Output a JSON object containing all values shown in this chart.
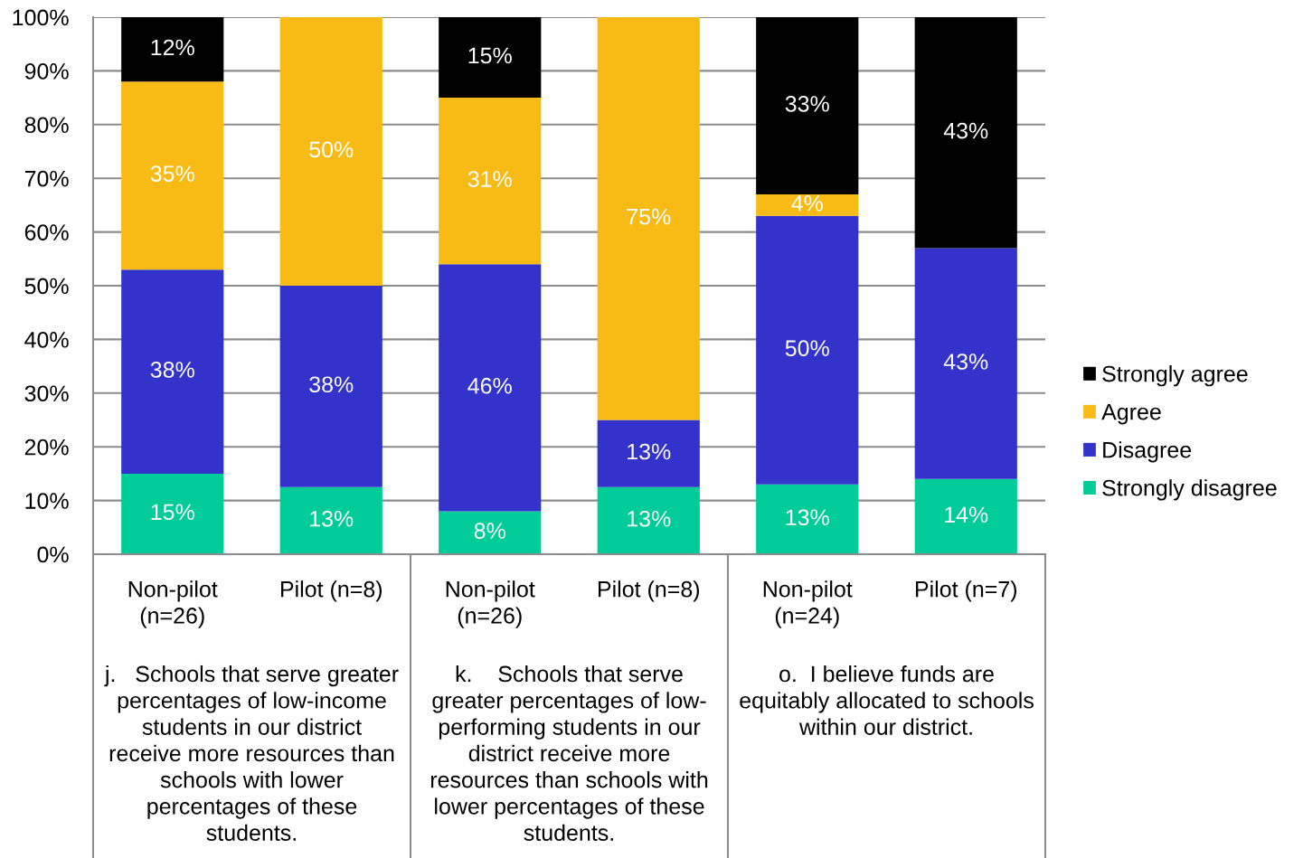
{
  "chart_data": {
    "type": "bar",
    "stacked": true,
    "categories": [
      "Non-pilot\n(n=26)",
      "Pilot (n=8)",
      "Non-pilot\n(n=26)",
      "Pilot (n=8)",
      "Non-pilot\n(n=24)",
      "Pilot (n=7)"
    ],
    "series": [
      {
        "name": "Strongly disagree",
        "color": "#00cc99",
        "values": [
          15,
          12.5,
          8,
          12.5,
          13,
          14
        ],
        "value_labels": [
          "15%",
          "13%",
          "8%",
          "13%",
          "13%",
          "14%"
        ]
      },
      {
        "name": "Disagree",
        "color": "#3333cc",
        "values": [
          38,
          37.5,
          46,
          12.5,
          50,
          43
        ],
        "value_labels": [
          "38%",
          "38%",
          "46%",
          "13%",
          "50%",
          "43%"
        ]
      },
      {
        "name": "Agree",
        "color": "#f8bb16",
        "values": [
          35,
          50,
          31,
          75,
          4,
          null
        ],
        "value_labels": [
          "35%",
          "50%",
          "31%",
          "75%",
          "4%",
          null
        ]
      },
      {
        "name": "Strongly agree",
        "color": "#000000",
        "values": [
          12,
          null,
          15,
          null,
          33,
          43
        ],
        "value_labels": [
          "12%",
          null,
          "15%",
          null,
          "33%",
          "43%"
        ]
      }
    ],
    "ylim": [
      0,
      100
    ],
    "yticks": [
      {
        "value": 0,
        "label": "0%"
      },
      {
        "value": 10,
        "label": "10%"
      },
      {
        "value": 20,
        "label": "20%"
      },
      {
        "value": 30,
        "label": "30%"
      },
      {
        "value": 40,
        "label": "40%"
      },
      {
        "value": 50,
        "label": "50%"
      },
      {
        "value": 60,
        "label": "60%"
      },
      {
        "value": 70,
        "label": "70%"
      },
      {
        "value": 80,
        "label": "80%"
      },
      {
        "value": 90,
        "label": "90%"
      },
      {
        "value": 100,
        "label": "100%"
      }
    ],
    "grid": "y",
    "legend": "right",
    "annotations": [
      "j.   Schools that serve greater\npercentages of low-income\nstudents in our district\nreceive more resources than\nschools with lower\npercentages of these\nstudents.",
      "k.    Schools that serve\ngreater percentages of low-\nperforming students in our\ndistrict receive more\nresources than schools with\nlower percentages of these\nstudents.",
      "o.  I believe funds are\nequitably allocated to schools\nwithin our district."
    ]
  }
}
